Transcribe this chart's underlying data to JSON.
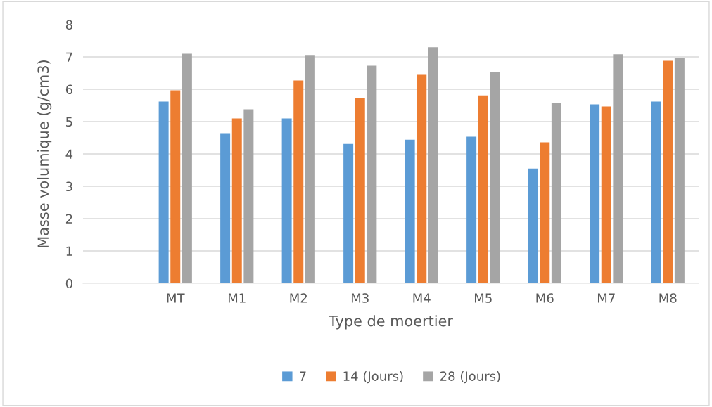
{
  "chart_data": {
    "type": "bar",
    "xlabel": "Type de moertier",
    "ylabel": "Masse volumique (g/cm3)",
    "categories": [
      null,
      "MT",
      "M1",
      "M2",
      "M3",
      "M4",
      "M5",
      "M6",
      "M7",
      "M8"
    ],
    "series": [
      {
        "name": "7",
        "color": "#5b9bd5",
        "values": [
          null,
          5.62,
          4.64,
          5.1,
          4.31,
          4.44,
          4.53,
          3.55,
          5.53,
          5.62
        ]
      },
      {
        "name": "14 (Jours)",
        "color": "#ed7d31",
        "values": [
          null,
          5.97,
          5.1,
          6.27,
          5.73,
          6.47,
          5.81,
          4.36,
          5.47,
          6.88
        ]
      },
      {
        "name": "28 (Jours)",
        "color": "#a5a5a5",
        "values": [
          null,
          7.1,
          5.38,
          7.06,
          6.73,
          7.3,
          6.53,
          5.58,
          7.08,
          6.97
        ]
      }
    ],
    "ylim": [
      0,
      8
    ],
    "yticks": [
      0,
      1,
      2,
      3,
      4,
      5,
      6,
      7,
      8
    ],
    "grid": "y",
    "legend": "bottom"
  }
}
